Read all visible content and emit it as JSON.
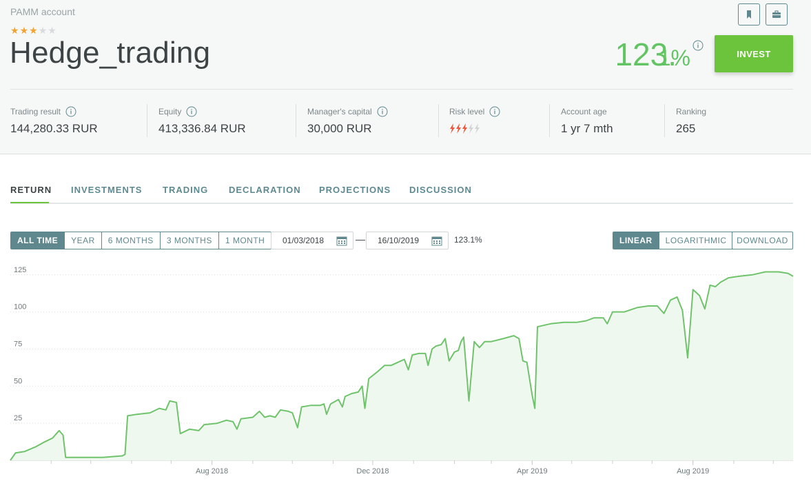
{
  "account": {
    "type_label": "PAMM account",
    "name": "Hedge_trading",
    "rating": 3,
    "rating_max": 5,
    "return_main": "123.",
    "return_decimal": "1%",
    "invest_label": "INVEST"
  },
  "icons": {
    "bookmark": "bookmark-icon",
    "briefcase": "briefcase-icon",
    "info": "info-icon",
    "calendar": "calendar-icon",
    "risk": "lightning-icon"
  },
  "stats": [
    {
      "label": "Trading result",
      "value": "144,280.33 RUR"
    },
    {
      "label": "Equity",
      "value": "413,336.84 RUR"
    },
    {
      "label": "Manager's capital",
      "value": "30,000 RUR"
    },
    {
      "label": "Risk level",
      "value": "",
      "risk_level": 3,
      "risk_max": 5
    },
    {
      "label": "Account age",
      "value": "1 yr 7 mth"
    },
    {
      "label": "Ranking",
      "value": "265"
    }
  ],
  "tabs": [
    {
      "label": "RETURN",
      "active": true
    },
    {
      "label": "INVESTMENTS",
      "active": false
    },
    {
      "label": "TRADING",
      "active": false
    },
    {
      "label": "DECLARATION",
      "active": false
    },
    {
      "label": "PROJECTIONS",
      "active": false
    },
    {
      "label": "DISCUSSION",
      "active": false
    }
  ],
  "periods": [
    {
      "label": "ALL TIME",
      "active": true
    },
    {
      "label": "YEAR",
      "active": false
    },
    {
      "label": "6 MONTHS",
      "active": false
    },
    {
      "label": "3 MONTHS",
      "active": false
    },
    {
      "label": "1 MONTH",
      "active": false
    }
  ],
  "date_from": "01/03/2018",
  "date_dash": "—",
  "date_to": "16/10/2019",
  "range_return": "123.1%",
  "scales": [
    {
      "label": "LINEAR",
      "active": true
    },
    {
      "label": "LOGARITHMIC",
      "active": false
    }
  ],
  "download_label": "DOWNLOAD",
  "colors": {
    "accent": "#6cc33c",
    "return_green": "#62c462",
    "teal": "#5e888e",
    "risk_on": "#f0573a",
    "risk_off": "#cfd4d5",
    "line": "#6fc36b",
    "area": "#eef8ee"
  },
  "chart_data": {
    "type": "area",
    "y_ticks": [
      0,
      25,
      50,
      75,
      100,
      125
    ],
    "ylim": [
      0,
      130
    ],
    "x_range": [
      "2018-03-01",
      "2019-10-16"
    ],
    "x_ticks": [
      {
        "date": "2018-08-01",
        "label": "Aug 2018"
      },
      {
        "date": "2018-12-01",
        "label": "Dec 2018"
      },
      {
        "date": "2019-04-01",
        "label": "Apr 2019"
      },
      {
        "date": "2019-08-01",
        "label": "Aug 2019"
      }
    ],
    "grid": true,
    "series": [
      {
        "points": [
          [
            "2018-03-01",
            0
          ],
          [
            "2018-03-05",
            5
          ],
          [
            "2018-03-12",
            6
          ],
          [
            "2018-03-20",
            9
          ],
          [
            "2018-03-26",
            12
          ],
          [
            "2018-04-02",
            15
          ],
          [
            "2018-04-07",
            20
          ],
          [
            "2018-04-10",
            17
          ],
          [
            "2018-04-12",
            2
          ],
          [
            "2018-04-25",
            2
          ],
          [
            "2018-05-10",
            2
          ],
          [
            "2018-05-25",
            3
          ],
          [
            "2018-05-27",
            4
          ],
          [
            "2018-05-29",
            30
          ],
          [
            "2018-06-05",
            31
          ],
          [
            "2018-06-15",
            32
          ],
          [
            "2018-06-22",
            35
          ],
          [
            "2018-06-27",
            34
          ],
          [
            "2018-06-30",
            40
          ],
          [
            "2018-07-05",
            39
          ],
          [
            "2018-07-08",
            18
          ],
          [
            "2018-07-15",
            21
          ],
          [
            "2018-07-22",
            20
          ],
          [
            "2018-07-26",
            24
          ],
          [
            "2018-08-05",
            25
          ],
          [
            "2018-08-12",
            27
          ],
          [
            "2018-08-17",
            26
          ],
          [
            "2018-08-20",
            21
          ],
          [
            "2018-08-23",
            28
          ],
          [
            "2018-09-01",
            29
          ],
          [
            "2018-09-06",
            33
          ],
          [
            "2018-09-10",
            29
          ],
          [
            "2018-09-14",
            30
          ],
          [
            "2018-09-18",
            29
          ],
          [
            "2018-09-22",
            34
          ],
          [
            "2018-09-28",
            33
          ],
          [
            "2018-10-01",
            32
          ],
          [
            "2018-10-05",
            22
          ],
          [
            "2018-10-08",
            36
          ],
          [
            "2018-10-15",
            37
          ],
          [
            "2018-10-22",
            37
          ],
          [
            "2018-10-25",
            38
          ],
          [
            "2018-10-27",
            31
          ],
          [
            "2018-10-30",
            38
          ],
          [
            "2018-11-05",
            41
          ],
          [
            "2018-11-08",
            36
          ],
          [
            "2018-11-10",
            43
          ],
          [
            "2018-11-15",
            45
          ],
          [
            "2018-11-20",
            46
          ],
          [
            "2018-11-23",
            50
          ],
          [
            "2018-11-25",
            35
          ],
          [
            "2018-11-28",
            55
          ],
          [
            "2018-12-05",
            60
          ],
          [
            "2018-12-10",
            64
          ],
          [
            "2018-12-15",
            64
          ],
          [
            "2018-12-20",
            66
          ],
          [
            "2018-12-25",
            68
          ],
          [
            "2018-12-28",
            61
          ],
          [
            "2018-12-31",
            71
          ],
          [
            "2019-01-05",
            72
          ],
          [
            "2019-01-10",
            72
          ],
          [
            "2019-01-12",
            64
          ],
          [
            "2019-01-15",
            75
          ],
          [
            "2019-01-18",
            77
          ],
          [
            "2019-01-22",
            78
          ],
          [
            "2019-01-25",
            82
          ],
          [
            "2019-01-28",
            67
          ],
          [
            "2019-02-01",
            73
          ],
          [
            "2019-02-04",
            74
          ],
          [
            "2019-02-06",
            80
          ],
          [
            "2019-02-08",
            83
          ],
          [
            "2019-02-12",
            40
          ],
          [
            "2019-02-16",
            80
          ],
          [
            "2019-02-20",
            76
          ],
          [
            "2019-02-24",
            80
          ],
          [
            "2019-03-01",
            80
          ],
          [
            "2019-03-10",
            82
          ],
          [
            "2019-03-18",
            84
          ],
          [
            "2019-03-22",
            82
          ],
          [
            "2019-03-25",
            67
          ],
          [
            "2019-03-28",
            66
          ],
          [
            "2019-04-01",
            44
          ],
          [
            "2019-04-03",
            35
          ],
          [
            "2019-04-05",
            90
          ],
          [
            "2019-04-15",
            92
          ],
          [
            "2019-04-25",
            93
          ],
          [
            "2019-05-05",
            93
          ],
          [
            "2019-05-12",
            94
          ],
          [
            "2019-05-18",
            96
          ],
          [
            "2019-05-25",
            96
          ],
          [
            "2019-05-28",
            92
          ],
          [
            "2019-06-01",
            100
          ],
          [
            "2019-06-10",
            100
          ],
          [
            "2019-06-20",
            103
          ],
          [
            "2019-06-28",
            104
          ],
          [
            "2019-07-05",
            104
          ],
          [
            "2019-07-10",
            99
          ],
          [
            "2019-07-15",
            108
          ],
          [
            "2019-07-20",
            110
          ],
          [
            "2019-07-24",
            101
          ],
          [
            "2019-07-28",
            69
          ],
          [
            "2019-08-01",
            115
          ],
          [
            "2019-08-06",
            111
          ],
          [
            "2019-08-10",
            102
          ],
          [
            "2019-08-14",
            118
          ],
          [
            "2019-08-18",
            117
          ],
          [
            "2019-08-22",
            120
          ],
          [
            "2019-08-28",
            123
          ],
          [
            "2019-09-05",
            124
          ],
          [
            "2019-09-15",
            125
          ],
          [
            "2019-09-25",
            127
          ],
          [
            "2019-10-05",
            127
          ],
          [
            "2019-10-12",
            126
          ],
          [
            "2019-10-16",
            124
          ]
        ]
      }
    ]
  }
}
